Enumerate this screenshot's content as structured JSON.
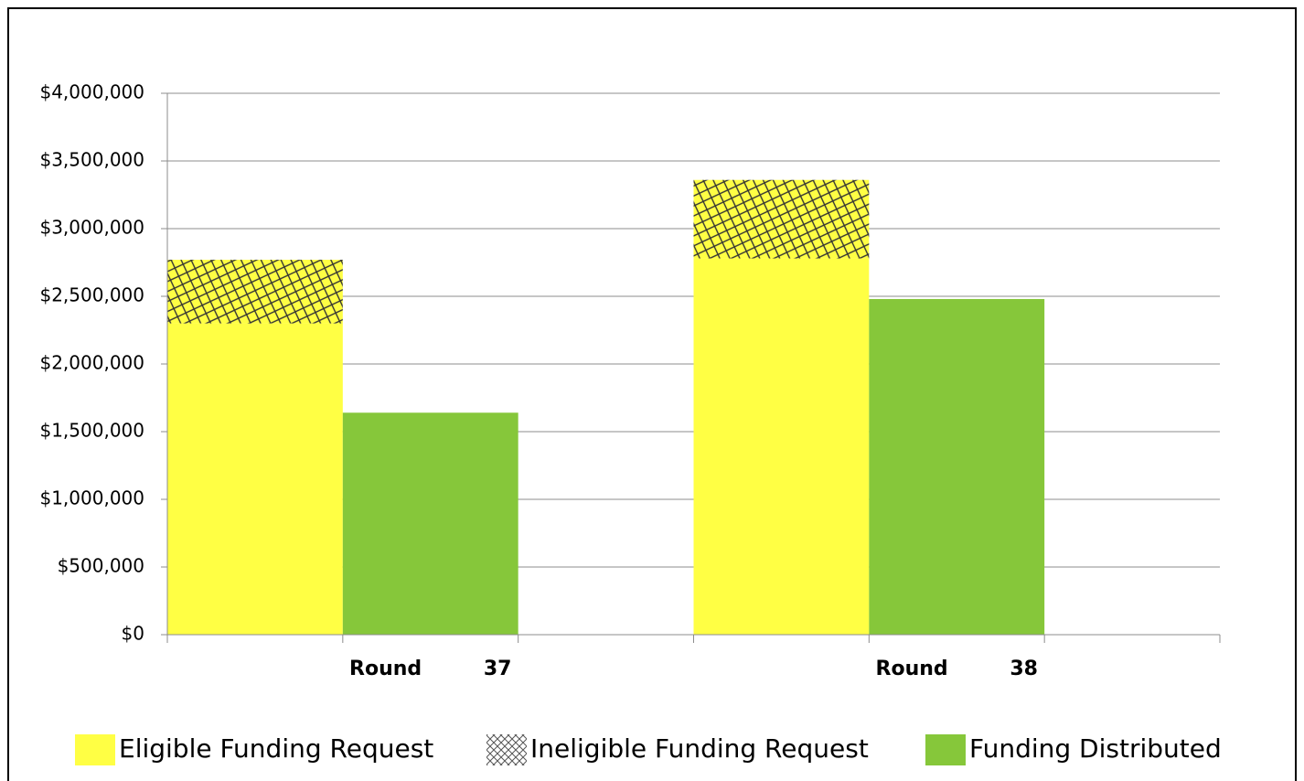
{
  "chart_data": {
    "type": "bar",
    "categories": [
      "Round 37",
      "Round 38"
    ],
    "series": [
      {
        "name": "Eligible Funding Request",
        "color": "#ffff44",
        "values": [
          2300000,
          2780000
        ]
      },
      {
        "name": "Ineligible Funding Request",
        "color": "#ffff44",
        "hatch": true,
        "values": [
          470000,
          580000
        ]
      },
      {
        "name": "Funding Distributed",
        "color": "#86c73a",
        "values": [
          1640000,
          2480000
        ]
      }
    ],
    "ylim": [
      0,
      4000000
    ],
    "yticks": [
      {
        "value": 0,
        "label": "$0"
      },
      {
        "value": 500000,
        "label": "$500,000"
      },
      {
        "value": 1000000,
        "label": "$1,000,000"
      },
      {
        "value": 1500000,
        "label": "$1,500,000"
      },
      {
        "value": 2000000,
        "label": "$2,000,000"
      },
      {
        "value": 2500000,
        "label": "$2,500,000"
      },
      {
        "value": 3000000,
        "label": "$3,000,000"
      },
      {
        "value": 3500000,
        "label": "$3,500,000"
      },
      {
        "value": 4000000,
        "label": "$4,000,000"
      }
    ],
    "grid": true,
    "legend": "bottom"
  }
}
